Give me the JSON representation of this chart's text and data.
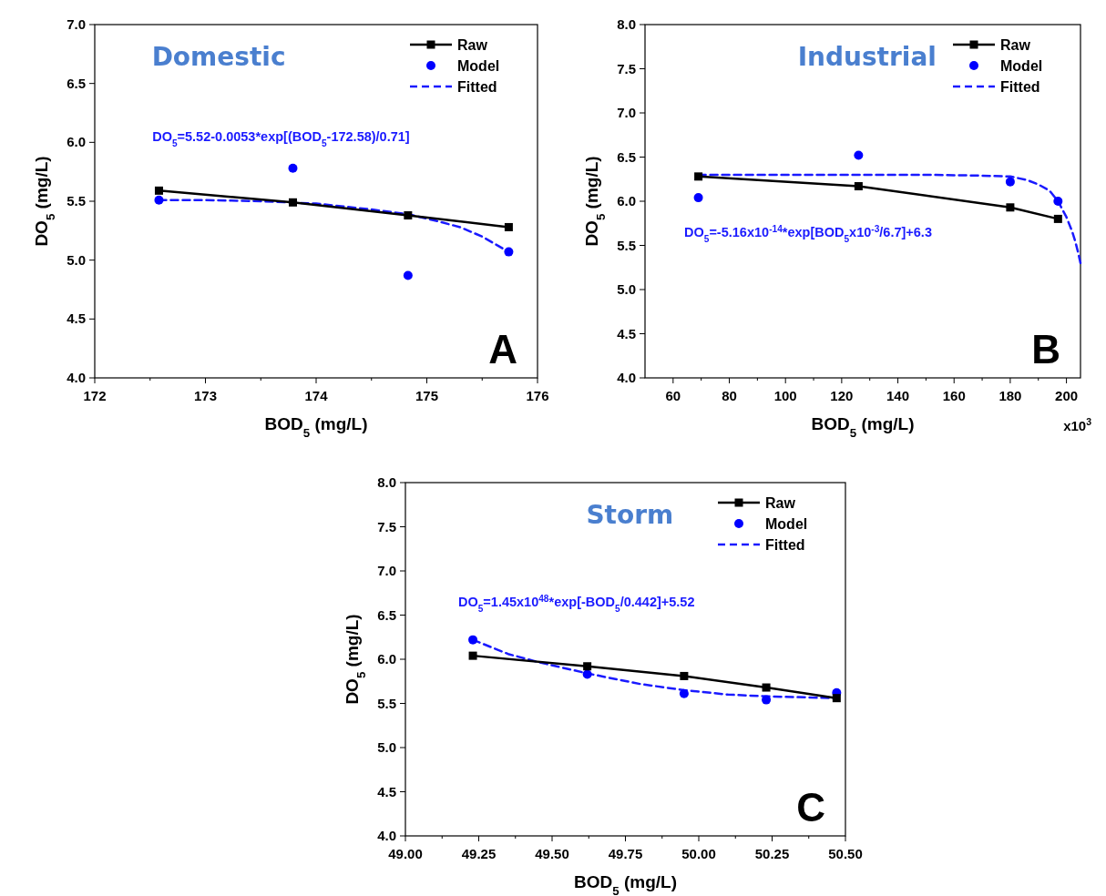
{
  "chart_data": [
    {
      "type": "line",
      "title": "Domestic",
      "xlabel": "BOD$_{5}$ (mg/L)",
      "ylabel": "DO$_{5}$ (mg/L)",
      "xlim": [
        172,
        176
      ],
      "xticks": [
        172,
        173,
        174,
        175,
        176
      ],
      "ylim": [
        4.0,
        7.0
      ],
      "yticks": [
        {
          "value": 4.0,
          "label": "4.0"
        },
        {
          "value": 4.5,
          "label": "4.5"
        },
        {
          "value": 5.0,
          "label": "5.0"
        },
        {
          "value": 5.5,
          "label": "5.5"
        },
        {
          "value": 6.0,
          "label": "6.0"
        },
        {
          "value": 6.5,
          "label": "6.5"
        },
        {
          "value": 7.0,
          "label": "7.0"
        }
      ],
      "legend": "top right",
      "grid": false,
      "annotations": [
        "DO$_{5}$=5.52-0.0053*exp[(BOD$_{5}$-172.58)/0.71]",
        "A"
      ],
      "series": [
        {
          "name": "Raw",
          "type": "line",
          "color": "#000000",
          "marker": "square",
          "line_style": "solid",
          "x": [
            172.58,
            173.79,
            174.83,
            175.74
          ],
          "values": [
            5.59,
            5.49,
            5.38,
            5.28
          ]
        },
        {
          "name": "Model",
          "type": "scatter",
          "color": "#0000ff",
          "marker": "circle",
          "x": [
            172.58,
            173.79,
            174.83,
            175.74
          ],
          "values": [
            5.51,
            5.78,
            4.87,
            5.07
          ]
        },
        {
          "name": "Fitted",
          "type": "line",
          "color": "#1a1aff",
          "marker": "none",
          "line_style": "dashed",
          "x": [
            172.58,
            173.0,
            173.5,
            174.0,
            174.5,
            174.83,
            175.1,
            175.3,
            175.5,
            175.74
          ],
          "values": [
            5.51,
            5.51,
            5.5,
            5.48,
            5.43,
            5.39,
            5.33,
            5.28,
            5.2,
            5.07
          ]
        }
      ]
    },
    {
      "type": "line",
      "title": "Industrial",
      "xlabel": "BOD$_{5}$ (mg/L)",
      "ylabel": "DO$_{5}$ (mg/L)",
      "xlim": [
        50,
        205
      ],
      "xticks": [
        60,
        80,
        100,
        120,
        140,
        160,
        180,
        200
      ],
      "ylim": [
        4.0,
        8.0
      ],
      "yticks": [
        {
          "value": 4.0,
          "label": "4.0"
        },
        {
          "value": 4.5,
          "label": "4.5"
        },
        {
          "value": 5.0,
          "label": "5.0"
        },
        {
          "value": 5.5,
          "label": "5.5"
        },
        {
          "value": 6.0,
          "label": "6.0"
        },
        {
          "value": 6.5,
          "label": "6.5"
        },
        {
          "value": 7.0,
          "label": "7.0"
        },
        {
          "value": 7.5,
          "label": "7.5"
        },
        {
          "value": 8.0,
          "label": "8.0"
        }
      ],
      "legend": "top right",
      "grid": false,
      "annotations": [
        "DO$_{5}$=-5.16x10$^{-14}$*exp[BOD$_{5}$x10$^{-3}$/6.7]+6.3",
        "B",
        "x10$^{3}$"
      ],
      "series": [
        {
          "name": "Raw",
          "type": "line",
          "color": "#000000",
          "marker": "square",
          "line_style": "solid",
          "x": [
            69,
            126,
            180,
            197
          ],
          "values": [
            6.28,
            6.17,
            5.93,
            5.8
          ]
        },
        {
          "name": "Model",
          "type": "scatter",
          "color": "#0000ff",
          "marker": "circle",
          "x": [
            69,
            126,
            180,
            197
          ],
          "values": [
            6.04,
            6.52,
            6.22,
            6.0
          ]
        },
        {
          "name": "Fitted",
          "type": "line",
          "color": "#1a1aff",
          "marker": "none",
          "line_style": "dashed",
          "x": [
            69,
            100,
            150,
            170,
            180,
            186,
            190,
            194,
            197,
            200,
            202,
            203,
            204,
            205
          ],
          "values": [
            6.3,
            6.3,
            6.3,
            6.29,
            6.28,
            6.24,
            6.19,
            6.12,
            6.0,
            5.82,
            5.66,
            5.56,
            5.44,
            5.3
          ]
        }
      ]
    },
    {
      "type": "line",
      "title": "Storm",
      "xlabel": "BOD$_{5}$ (mg/L)",
      "ylabel": "DO$_{5}$ (mg/L)",
      "xlim": [
        49.0,
        50.5
      ],
      "xticks": [
        {
          "value": 49.0,
          "label": "49.00"
        },
        {
          "value": 49.25,
          "label": "49.25"
        },
        {
          "value": 49.5,
          "label": "49.50"
        },
        {
          "value": 49.75,
          "label": "49.75"
        },
        {
          "value": 50.0,
          "label": "50.00"
        },
        {
          "value": 50.25,
          "label": "50.25"
        },
        {
          "value": 50.5,
          "label": "50.50"
        }
      ],
      "ylim": [
        4.0,
        8.0
      ],
      "yticks": [
        {
          "value": 4.0,
          "label": "4.0"
        },
        {
          "value": 4.5,
          "label": "4.5"
        },
        {
          "value": 5.0,
          "label": "5.0"
        },
        {
          "value": 5.5,
          "label": "5.5"
        },
        {
          "value": 6.0,
          "label": "6.0"
        },
        {
          "value": 6.5,
          "label": "6.5"
        },
        {
          "value": 7.0,
          "label": "7.0"
        },
        {
          "value": 7.5,
          "label": "7.5"
        },
        {
          "value": 8.0,
          "label": "8.0"
        }
      ],
      "legend": "top right",
      "grid": false,
      "annotations": [
        "DO$_{5}$=1.45x10$^{48}$*exp[-BOD$_{5}$/0.442]+5.52",
        "C"
      ],
      "series": [
        {
          "name": "Raw",
          "type": "line",
          "color": "#000000",
          "marker": "square",
          "line_style": "solid",
          "x": [
            49.23,
            49.62,
            49.95,
            50.23,
            50.47
          ],
          "values": [
            6.04,
            5.92,
            5.81,
            5.68,
            5.56
          ]
        },
        {
          "name": "Model",
          "type": "scatter",
          "color": "#0000ff",
          "marker": "circle",
          "x": [
            49.23,
            49.62,
            49.95,
            50.23,
            50.47
          ],
          "values": [
            6.22,
            5.83,
            5.61,
            5.54,
            5.62
          ]
        },
        {
          "name": "Fitted",
          "type": "line",
          "color": "#1a1aff",
          "marker": "none",
          "line_style": "dashed",
          "x": [
            49.23,
            49.35,
            49.45,
            49.62,
            49.8,
            49.95,
            50.1,
            50.23,
            50.47
          ],
          "values": [
            6.22,
            6.06,
            5.97,
            5.84,
            5.72,
            5.65,
            5.6,
            5.58,
            5.56
          ]
        }
      ]
    }
  ]
}
